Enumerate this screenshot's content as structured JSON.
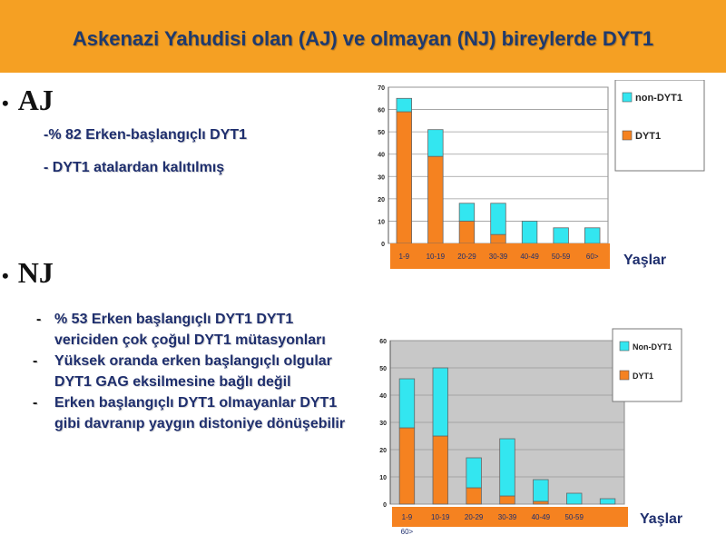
{
  "slide": {
    "title": "Askenazi Yahudisi olan (AJ) ve olmayan (NJ) bireylerde DYT1",
    "aj_label": "AJ",
    "nj_label": "NJ",
    "aj_lines": [
      "-% 82 Erken-başlangıçlı DYT1",
      "- DYT1  atalardan kalıtılmış"
    ],
    "nj_items": [
      "% 53 Erken başlangıçlı DYT1 DYT1 vericiden çok çoğul DYT1 mütasyonları",
      "Yüksek oranda erken başlangıçlı olgular DYT1 GAG eksilmesine bağlı değil",
      "Erken başlangıçlı DYT1 olmayanlar DYT1 gibi davranıp yaygın distoniye dönüşebilir"
    ],
    "nj_dash": "-",
    "colors": {
      "title_bg": "#f5a023",
      "title_text": "#1f3a6e",
      "body_text": "#1f2f6e",
      "dyt1": "#f58220",
      "non_dyt1": "#33e6f0"
    }
  },
  "chart_data": [
    {
      "type": "bar",
      "stacked": true,
      "categories": [
        "1-9",
        "10-19",
        "20-29",
        "30-39",
        "40-49",
        "50-59",
        "60>"
      ],
      "series": [
        {
          "name": "DYT1",
          "color": "#f58220",
          "values": [
            59,
            39,
            10,
            4,
            0,
            0,
            0
          ]
        },
        {
          "name": "non-DYT1",
          "color": "#33e6f0",
          "values": [
            6,
            12,
            8,
            14,
            10,
            7,
            7
          ]
        }
      ],
      "xlabel": "Yaşlar",
      "ylim": [
        0,
        70
      ],
      "yticks": [
        0,
        10,
        20,
        30,
        40,
        50,
        60,
        70
      ],
      "legend": "right",
      "grid": true
    },
    {
      "type": "bar",
      "stacked": true,
      "categories": [
        "1-9",
        "10-19",
        "20-29",
        "30-39",
        "40-49",
        "50-59",
        "60>"
      ],
      "series": [
        {
          "name": "DYT1",
          "color": "#f58220",
          "values": [
            28,
            25,
            6,
            3,
            1,
            0,
            0
          ]
        },
        {
          "name": "Non-DYT1",
          "color": "#33e6f0",
          "values": [
            18,
            25,
            11,
            21,
            8,
            4,
            2
          ]
        }
      ],
      "xlabel": "Yaşlar",
      "ylim": [
        0,
        60
      ],
      "yticks": [
        0,
        10,
        20,
        30,
        40,
        50,
        60
      ],
      "legend": "right",
      "grid": true
    }
  ]
}
